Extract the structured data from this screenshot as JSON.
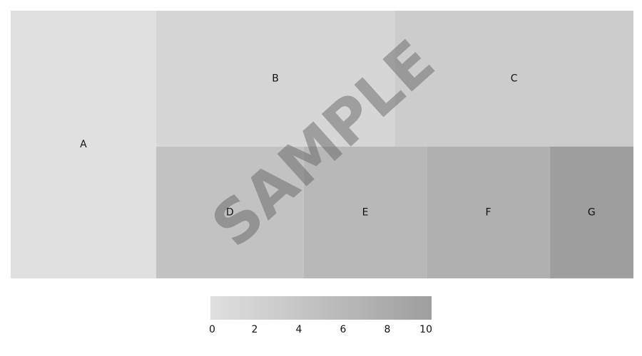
{
  "chart_data": {
    "type": "treemap",
    "title": "",
    "watermark": "SAMPLE",
    "color_scale": {
      "min": 0,
      "max": 10,
      "ticks": [
        "0",
        "2",
        "4",
        "6",
        "8",
        "10"
      ],
      "low_color": "#e0e0e0",
      "high_color": "#9e9e9e"
    },
    "items": [
      {
        "label": "A",
        "value": 6,
        "color_value": 0
      },
      {
        "label": "B",
        "value": 5,
        "color_value": 1.5
      },
      {
        "label": "C",
        "value": 5,
        "color_value": 3
      },
      {
        "label": "D",
        "value": 3,
        "color_value": 4.5
      },
      {
        "label": "E",
        "value": 2.5,
        "color_value": 6
      },
      {
        "label": "F",
        "value": 2.5,
        "color_value": 7.5
      },
      {
        "label": "G",
        "value": 1.7,
        "color_value": 10
      }
    ]
  }
}
